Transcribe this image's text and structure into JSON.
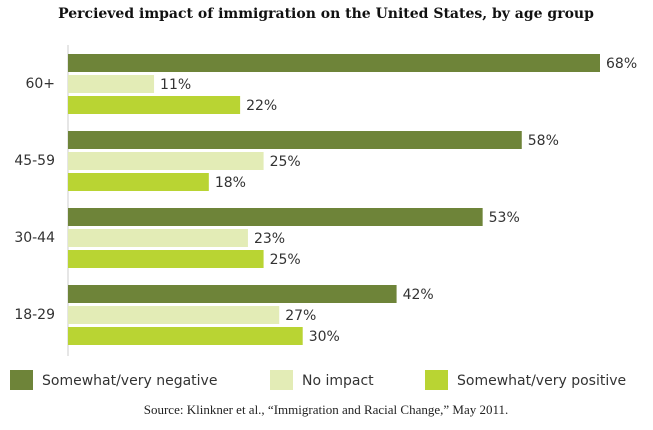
{
  "chart_data": {
    "type": "hbar",
    "title": "Percieved impact of immigration on the United States, by age group",
    "categories": [
      "60+",
      "45-59",
      "30-44",
      "18-29"
    ],
    "series": [
      {
        "name": "Somewhat/very negative",
        "color": "#6e8439",
        "values": [
          68,
          58,
          53,
          42
        ],
        "value_labels": [
          "68%",
          "58%",
          "53%",
          "42%"
        ]
      },
      {
        "name": "No impact",
        "color": "#e3ecb6",
        "values": [
          11,
          25,
          23,
          27
        ],
        "value_labels": [
          "11%",
          "25%",
          "23%",
          "27%"
        ]
      },
      {
        "name": "Somewhat/very positive",
        "color": "#b9d433",
        "values": [
          22,
          18,
          25,
          30
        ],
        "value_labels": [
          "22%",
          "18%",
          "25%",
          "30%"
        ]
      }
    ],
    "source": "Source: Klinkner et al., “Immigration and Racial Change,” May 2011."
  }
}
